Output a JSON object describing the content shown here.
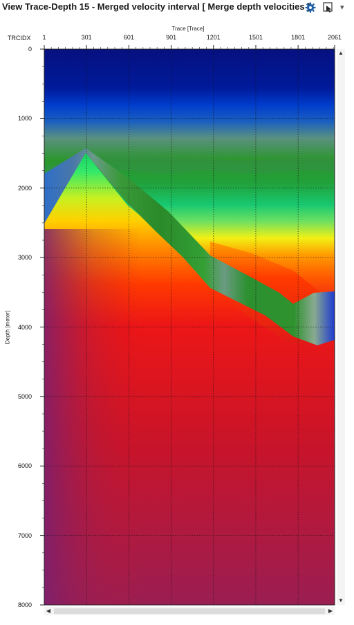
{
  "window": {
    "title": "View Trace-Depth 15 - Merged velocity interval [ Merge depth velocities ]"
  },
  "toolbar": {
    "settings_icon": "gear-icon",
    "picker_icon": "cursor-select-icon",
    "more_icon": "double-chevron-right-icon"
  },
  "header": {
    "trace_key": "TRCIDX"
  },
  "chart_data": {
    "type": "heatmap",
    "title": "",
    "xlabel": "Trace [Trace]",
    "ylabel": "Depth [meter]",
    "xlim": [
      1,
      2060
    ],
    "ylim": [
      0,
      8000
    ],
    "x_ticks": [
      "1",
      "301",
      "601",
      "901",
      "1201",
      "1501",
      "1801",
      "2061"
    ],
    "x_tick_values": [
      1,
      301,
      601,
      901,
      1201,
      1501,
      1801,
      2061
    ],
    "y_ticks": [
      "0",
      "1000",
      "2000",
      "3000",
      "4000",
      "5000",
      "6000",
      "7000",
      "8000"
    ],
    "y_tick_values": [
      0,
      1000,
      2000,
      3000,
      4000,
      5000,
      6000,
      7000,
      8000
    ],
    "grid": "dotted",
    "colormap": [
      "#0a1a8c",
      "#0050d0",
      "#2a8a2a",
      "#18c878",
      "#f0f010",
      "#ff8c00",
      "#e81818",
      "#8a2060"
    ],
    "layer_boundaries": {
      "lower_blue_to_green_top": {
        "x": [
          1,
          301,
          601,
          901,
          1201,
          1501,
          1801,
          2061
        ],
        "y": [
          1800,
          1450,
          1700,
          2200,
          2800,
          3250,
          3650,
          3500
        ]
      },
      "inclusion_bottom": {
        "x": [
          1,
          301,
          601,
          901,
          1201,
          1501,
          1801,
          1960,
          2061
        ],
        "y": [
          2500,
          2200,
          2700,
          3400,
          3700,
          3950,
          4150,
          4250,
          4200
        ]
      }
    }
  }
}
